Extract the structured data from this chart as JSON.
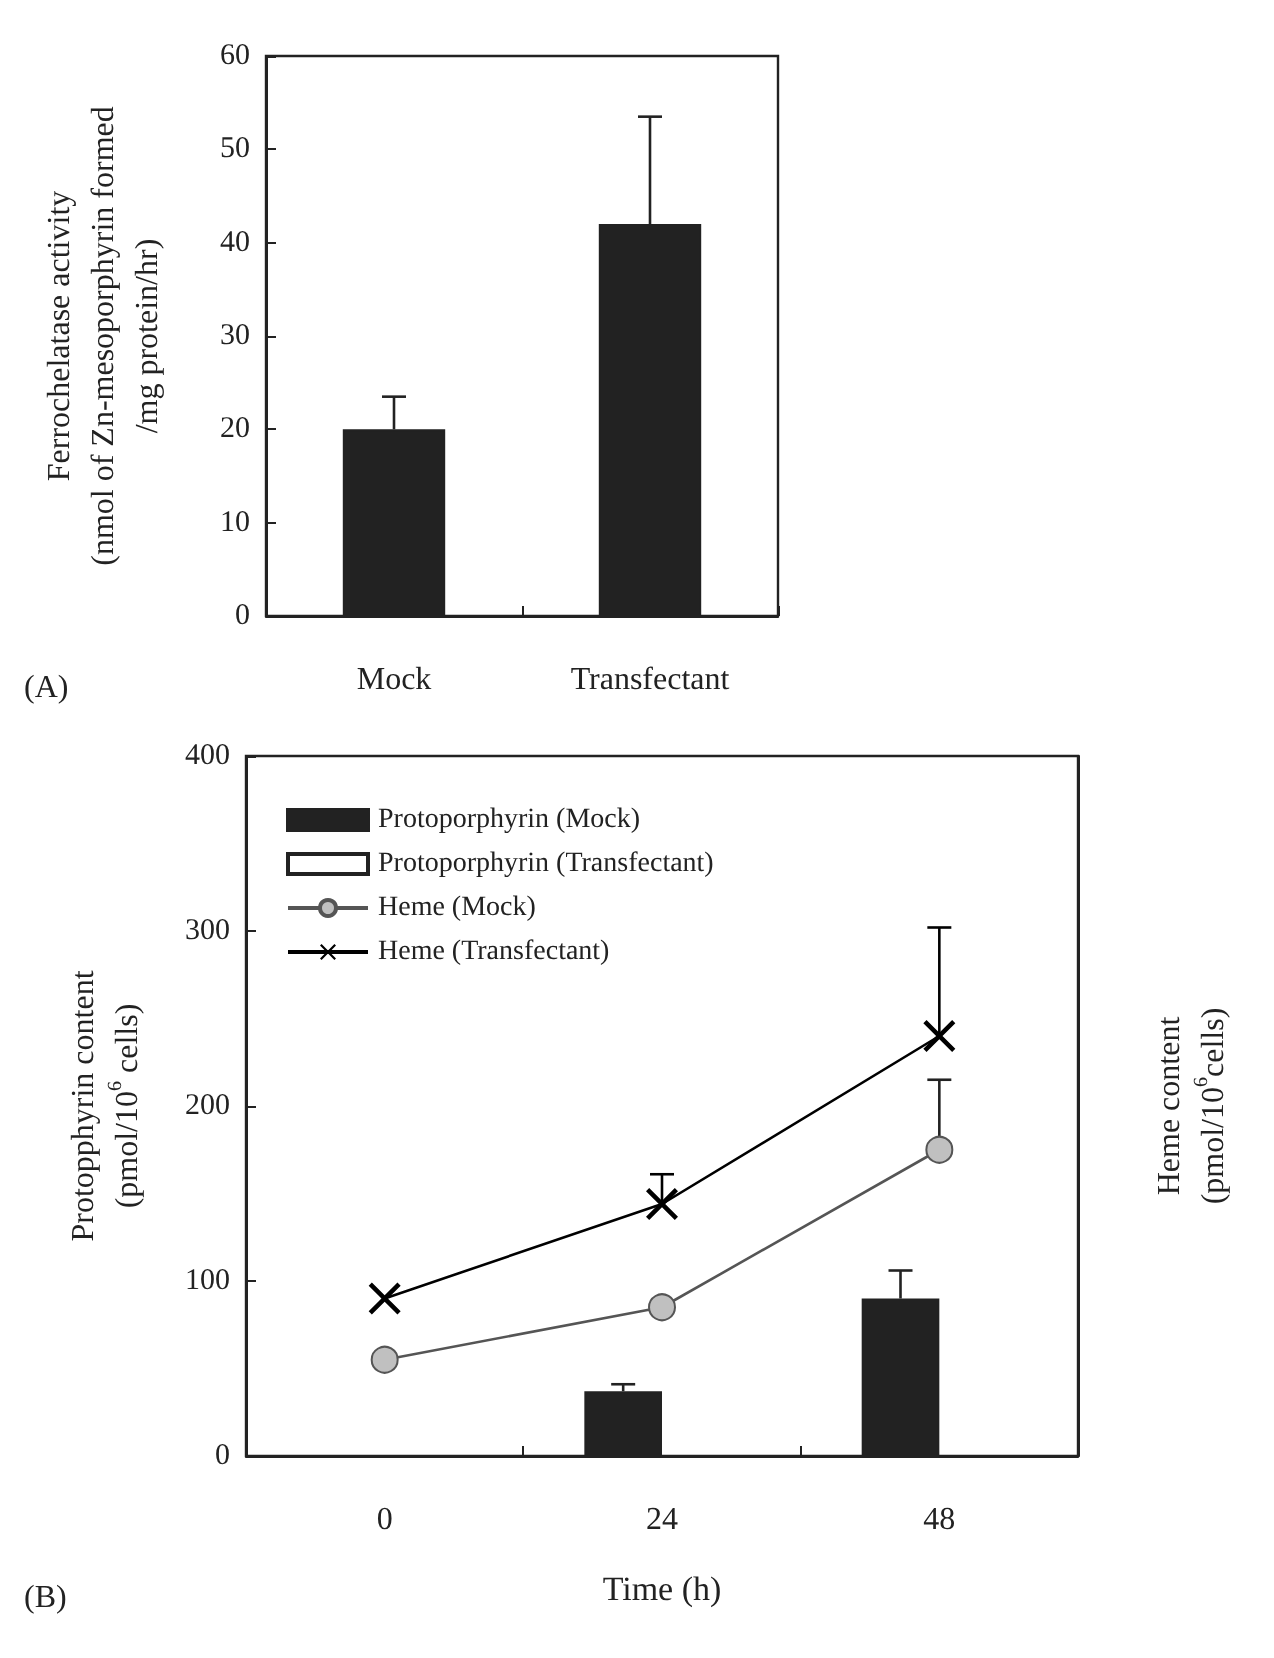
{
  "chart_data": [
    {
      "type": "bar",
      "ylabel": "Ferrochelatase activity\n(nmol of Zn-mesoporphyrin formed\n/mg protein/hr)",
      "categories": [
        "Mock",
        "Transfectant"
      ],
      "values": [
        20,
        42
      ],
      "errors": [
        [
          20,
          23.5
        ],
        [
          42,
          53.5
        ]
      ],
      "color": "#222222",
      "ylim": [
        0,
        60
      ],
      "yticks": [
        0,
        10,
        20,
        30,
        40,
        50,
        60
      ],
      "annotations": [
        "(A)"
      ]
    },
    {
      "type": "bar",
      "xlabel": "Time (h)",
      "ylabel": "Protopphyrin content\n(pmol/10$^{6}$ cells)",
      "y2label": "Heme content\n(pmol/10$^{6}$cells)",
      "categories": [
        "0",
        "24",
        "48"
      ],
      "ylim": [
        0,
        400
      ],
      "yticks": [
        0,
        100,
        200,
        300,
        400
      ],
      "legend": "top left",
      "annotations": [
        "(B)"
      ],
      "series": [
        {
          "name": "Protoporphyrin (Mock)",
          "type": "bar",
          "color": "#222222",
          "values": [
            null,
            37,
            90
          ],
          "errors": [
            null,
            [
              37,
              41
            ],
            [
              90,
              106
            ]
          ]
        },
        {
          "name": "Protoporphyrin (Transfectant)",
          "type": "bar",
          "color": "#ffffff",
          "values": [
            null,
            null,
            null
          ]
        },
        {
          "name": "Heme (Mock)",
          "type": "line",
          "color": "#c0c0c0",
          "marker": "circle",
          "values": [
            55,
            85,
            175
          ],
          "errors": [
            null,
            null,
            [
              175,
              215
            ]
          ]
        },
        {
          "name": "Heme (Transfectant)",
          "type": "line",
          "color": "#000000",
          "marker": "cross",
          "values": [
            90,
            144,
            240
          ],
          "errors": [
            null,
            [
              144,
              161
            ],
            [
              240,
              302
            ]
          ]
        }
      ]
    }
  ]
}
